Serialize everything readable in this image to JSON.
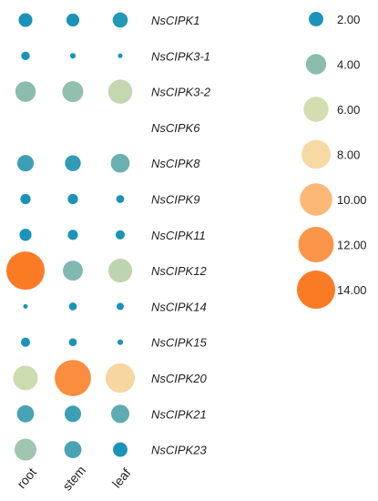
{
  "chart_data": {
    "type": "bubble-heatmap",
    "genes": [
      "NsCIPK1",
      "NsCIPK3-1",
      "NsCIPK3-2",
      "NsCIPK6",
      "NsCIPK8",
      "NsCIPK9",
      "NsCIPK11",
      "NsCIPK12",
      "NsCIPK14",
      "NsCIPK15",
      "NsCIPK20",
      "NsCIPK21",
      "NsCIPK23"
    ],
    "tissues": [
      "root",
      "stem",
      "leaf"
    ],
    "values": [
      [
        1.8,
        1.6,
        2.2
      ],
      [
        0.7,
        0.3,
        0.2
      ],
      [
        4.0,
        4.2,
        5.6
      ],
      [
        0,
        0,
        0
      ],
      [
        2.6,
        2.4,
        3.4
      ],
      [
        1.0,
        1.0,
        0.6
      ],
      [
        1.4,
        1.0,
        0.8
      ],
      [
        14.0,
        3.8,
        5.4
      ],
      [
        0.2,
        0.6,
        0.5
      ],
      [
        0.8,
        0.6,
        0.3
      ],
      [
        5.8,
        12.6,
        8.2
      ],
      [
        2.8,
        2.6,
        3.2
      ],
      [
        4.6,
        2.8,
        2.0
      ]
    ],
    "legend": {
      "values": [
        2,
        4,
        6,
        8,
        10,
        12,
        14
      ],
      "labels": [
        "2.00",
        "4.00",
        "6.00",
        "8.00",
        "10.00",
        "12.00",
        "14.00"
      ],
      "colors": [
        "#1a93b8",
        "#8cbcae",
        "#d3deb0",
        "#f7d9a3",
        "#fbb876",
        "#fb9549",
        "#fb7a24"
      ]
    }
  }
}
